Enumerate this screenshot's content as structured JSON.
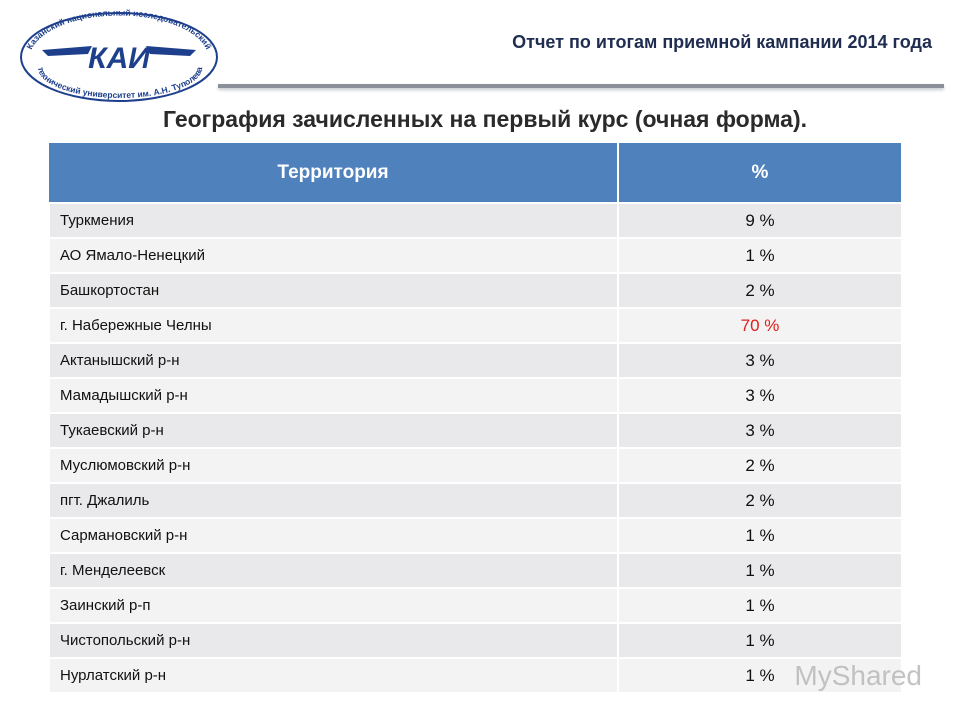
{
  "logo": {
    "top_text": "Казанский национальный исследовательский",
    "bottom_text": "технический университет им. А.Н. Туполева",
    "mark": "КАИ"
  },
  "header": {
    "report": "Отчет по итогам приемной кампании 2014 года",
    "title": "География зачисленных на первый курс (очная форма)."
  },
  "table": {
    "columns": [
      "Территория",
      "%"
    ],
    "rows": [
      {
        "territory": "Туркмения",
        "percent": "9 %"
      },
      {
        "territory": "АО Ямало-Ненецкий",
        "percent": "1 %"
      },
      {
        "territory": "Башкортостан",
        "percent": "2 %"
      },
      {
        "territory": "г. Набережные Челны",
        "percent": "70 %",
        "color": "#e0201c"
      },
      {
        "territory": "Актанышский р-н",
        "percent": "3 %"
      },
      {
        "territory": "Мамадышский р-н",
        "percent": "3 %"
      },
      {
        "territory": "Тукаевский р-н",
        "percent": "3 %"
      },
      {
        "territory": "Муслюмовский р-н",
        "percent": "2 %"
      },
      {
        "territory": "пгт. Джалиль",
        "percent": "2 %"
      },
      {
        "territory": "Сармановский р-н",
        "percent": "1 %"
      },
      {
        "territory": "г. Менделеевск",
        "percent": "1 %"
      },
      {
        "territory": "Заинский р-п",
        "percent": "1 %"
      },
      {
        "territory": "Чистопольский р-н",
        "percent": "1 %"
      },
      {
        "territory": "Нурлатский р-н",
        "percent": "1 %"
      }
    ]
  },
  "watermark": "MyShared"
}
